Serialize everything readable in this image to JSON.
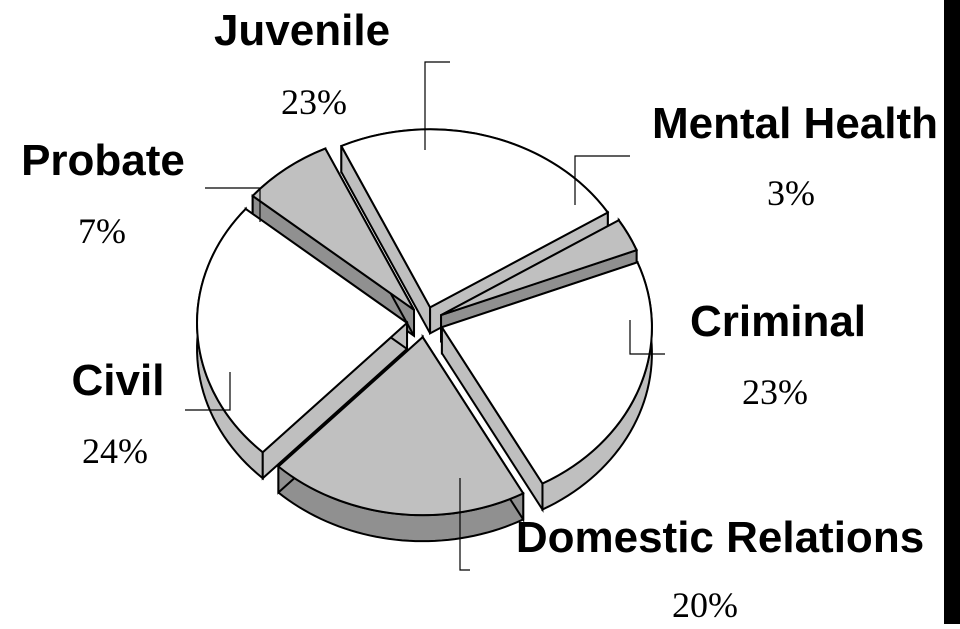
{
  "chart_data": {
    "type": "pie",
    "style": "3d-exploded",
    "slices": [
      {
        "label": "Juvenile",
        "value": 23,
        "value_label": "23%",
        "color": "#ffffff"
      },
      {
        "label": "Mental Health",
        "value": 3,
        "value_label": "3%",
        "color": "#c0c0c0"
      },
      {
        "label": "Criminal",
        "value": 23,
        "value_label": "23%",
        "color": "#ffffff"
      },
      {
        "label": "Domestic Relations",
        "value": 20,
        "value_label": "20%",
        "color": "#c0c0c0"
      },
      {
        "label": "Civil",
        "value": 24,
        "value_label": "24%",
        "color": "#ffffff"
      },
      {
        "label": "Probate",
        "value": 7,
        "value_label": "7%",
        "color": "#c0c0c0"
      }
    ]
  }
}
